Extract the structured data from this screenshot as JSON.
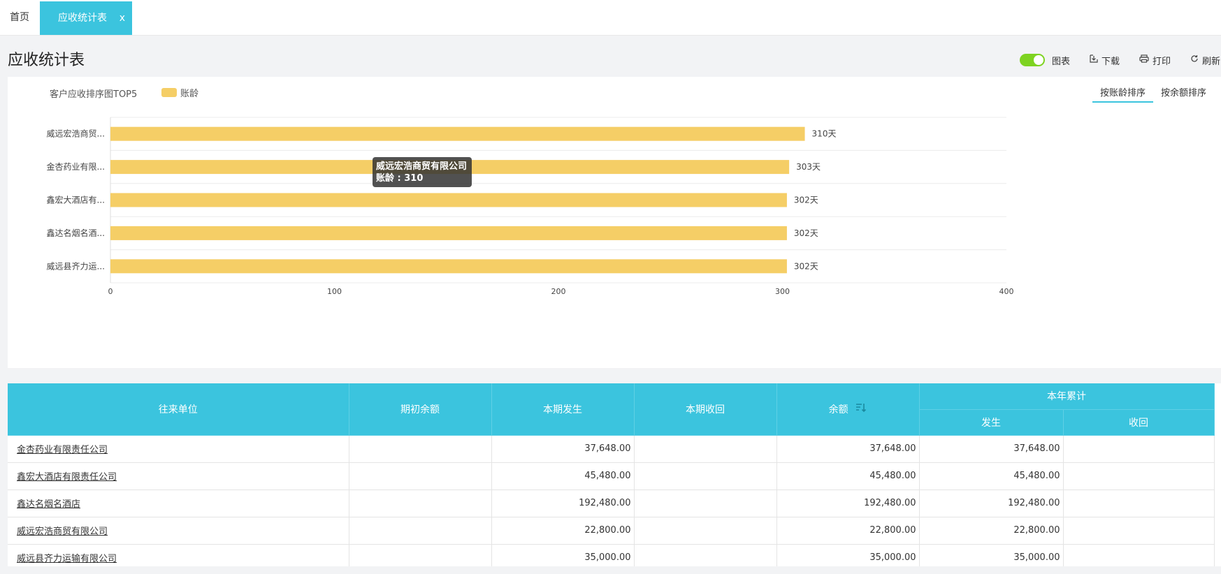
{
  "tabs": {
    "home": "首页",
    "active": "应收统计表",
    "close": "x"
  },
  "page": {
    "title": "应收统计表"
  },
  "toolbar": {
    "chart_toggle_label": "图表",
    "download_label": "下载",
    "print_label": "打印",
    "refresh_label": "刷新"
  },
  "chart_panel": {
    "title": "客户应收排序图TOP5",
    "legend": "账龄",
    "sort_by_age": "按账龄排序",
    "sort_by_balance": "按余额排序"
  },
  "tooltip": {
    "title": "威远宏浩商贸有限公司",
    "value": "账龄 : 310"
  },
  "chart_data": {
    "type": "bar",
    "orientation": "horizontal",
    "title": "客户应收排序图TOP5",
    "categories": [
      "威远宏浩商贸...",
      "金杏药业有限...",
      "鑫宏大酒店有...",
      "鑫达名烟名酒...",
      "威远县齐力运..."
    ],
    "series": [
      {
        "name": "账龄",
        "values": [
          310,
          303,
          302,
          302,
          302
        ],
        "labels": [
          "310天",
          "303天",
          "302天",
          "302天",
          "302天"
        ]
      }
    ],
    "xlim": [
      0,
      400
    ],
    "xticks": [
      0,
      100,
      200,
      300,
      400
    ],
    "color": "#f5ce66",
    "grid": true
  },
  "table": {
    "headers": {
      "company": "往来单位",
      "opening": "期初余额",
      "incurred": "本期发生",
      "received": "本期收回",
      "balance": "余额",
      "ytd": "本年累计",
      "ytd_incurred": "发生",
      "ytd_received": "收回"
    },
    "rows": [
      {
        "company": "金杏药业有限责任公司",
        "opening": "",
        "incurred": "37,648.00",
        "received": "",
        "balance": "37,648.00",
        "ytd_incurred": "37,648.00",
        "ytd_received": ""
      },
      {
        "company": "鑫宏大酒店有限责任公司",
        "opening": "",
        "incurred": "45,480.00",
        "received": "",
        "balance": "45,480.00",
        "ytd_incurred": "45,480.00",
        "ytd_received": ""
      },
      {
        "company": "鑫达名烟名酒店",
        "opening": "",
        "incurred": "192,480.00",
        "received": "",
        "balance": "192,480.00",
        "ytd_incurred": "192,480.00",
        "ytd_received": ""
      },
      {
        "company": "威远宏浩商贸有限公司",
        "opening": "",
        "incurred": "22,800.00",
        "received": "",
        "balance": "22,800.00",
        "ytd_incurred": "22,800.00",
        "ytd_received": ""
      },
      {
        "company": "威远县齐力运输有限公司",
        "opening": "",
        "incurred": "35,000.00",
        "received": "",
        "balance": "35,000.00",
        "ytd_incurred": "35,000.00",
        "ytd_received": ""
      }
    ]
  }
}
